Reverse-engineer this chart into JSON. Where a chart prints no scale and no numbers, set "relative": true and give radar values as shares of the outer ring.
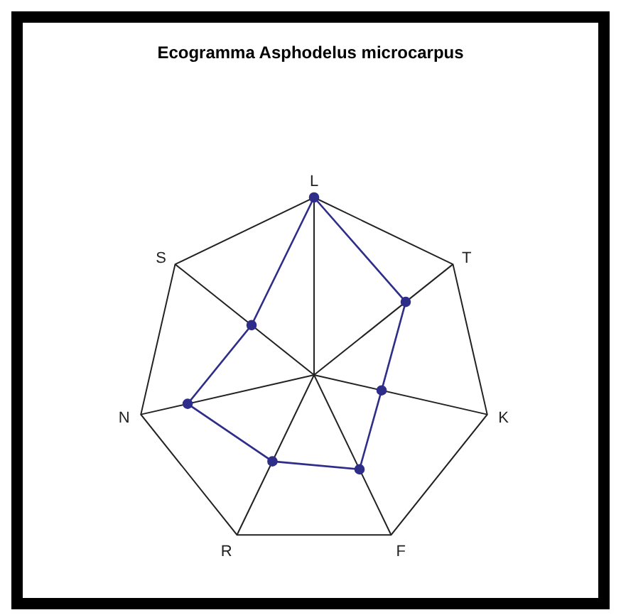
{
  "chart_data": {
    "type": "radar",
    "title": "Ecogramma Asphodelus microcarpus",
    "categories": [
      "L",
      "T",
      "K",
      "F",
      "R",
      "N",
      "S"
    ],
    "relative": true,
    "marker": "circle",
    "grid": true,
    "legend": false,
    "series": [
      {
        "color": "#2e2e8a",
        "values": [
          1,
          0.66,
          0.39,
          0.59,
          0.54,
          0.73,
          0.45
        ]
      }
    ]
  }
}
